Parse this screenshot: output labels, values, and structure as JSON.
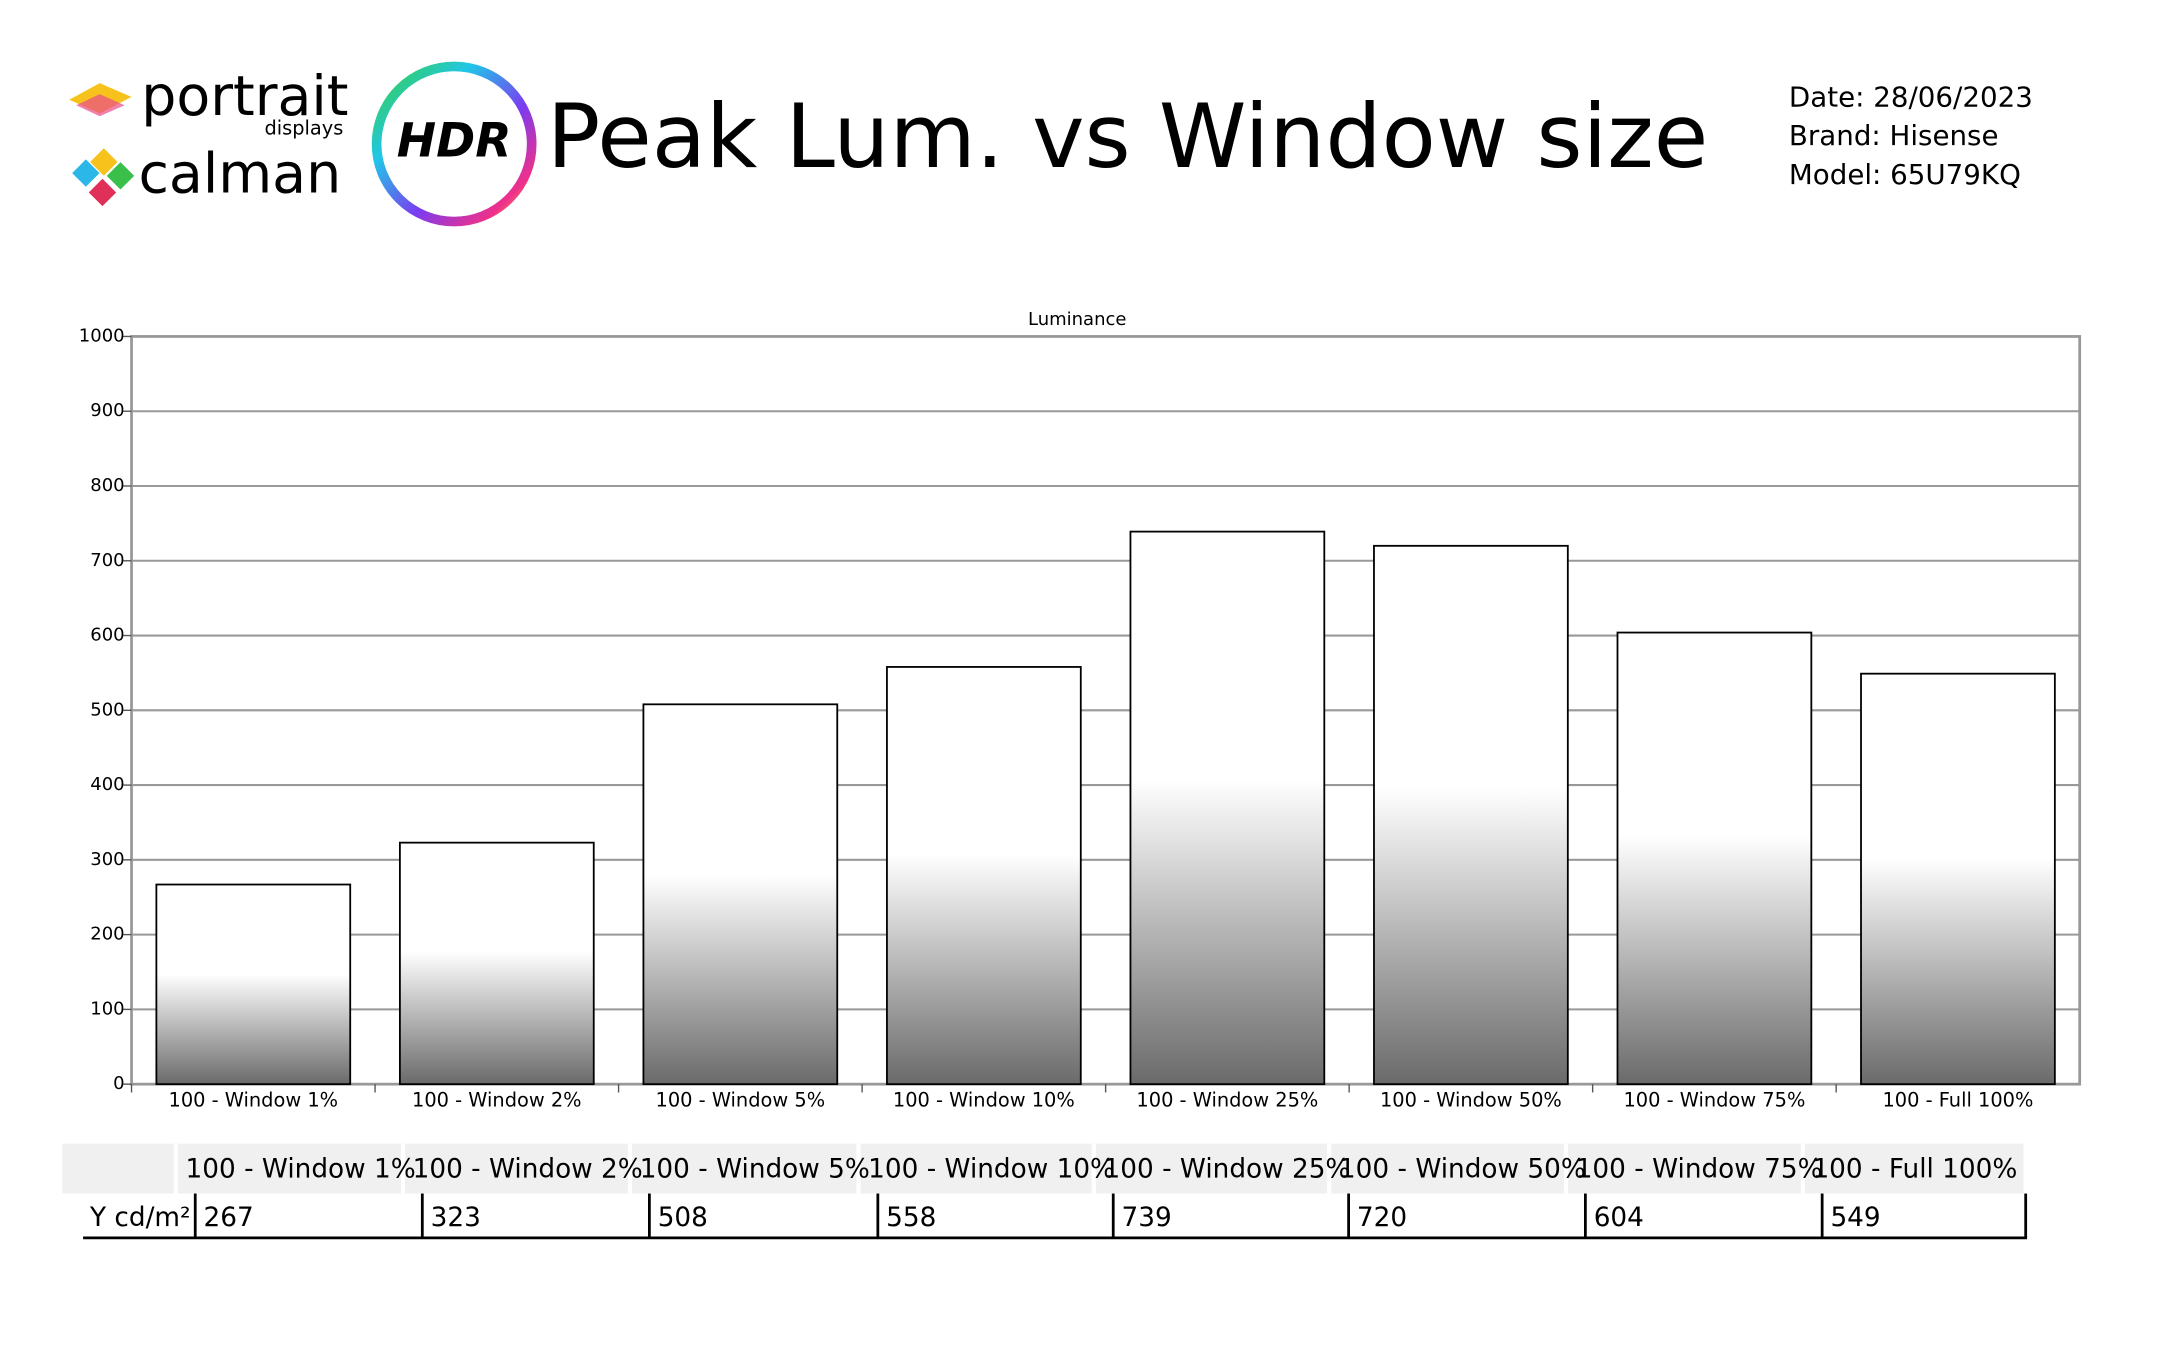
{
  "header": {
    "logo_portrait": "portrait",
    "logo_displays": "displays",
    "logo_calman": "calman",
    "logo_hdr": "HDR",
    "title": "Peak Lum. vs Window size",
    "date": "Date: 28/06/2023",
    "brand": "Brand: Hisense",
    "model": "Model: 65U79KQ"
  },
  "chart_data": {
    "type": "bar",
    "title": "Luminance",
    "categories": [
      "100 - Window  1%",
      "100 - Window  2%",
      "100 - Window  5%",
      "100 - Window 10%",
      "100 - Window 25%",
      "100 - Window 50%",
      "100 - Window 75%",
      "100 - Full  100%"
    ],
    "values": [
      267,
      323,
      508,
      558,
      739,
      720,
      604,
      549
    ],
    "ylim": [
      0,
      1000
    ],
    "yticks": [
      0,
      100,
      200,
      300,
      400,
      500,
      600,
      700,
      800,
      900,
      1000
    ],
    "grid": true
  },
  "table": {
    "row_label": "Y cd/m²"
  }
}
